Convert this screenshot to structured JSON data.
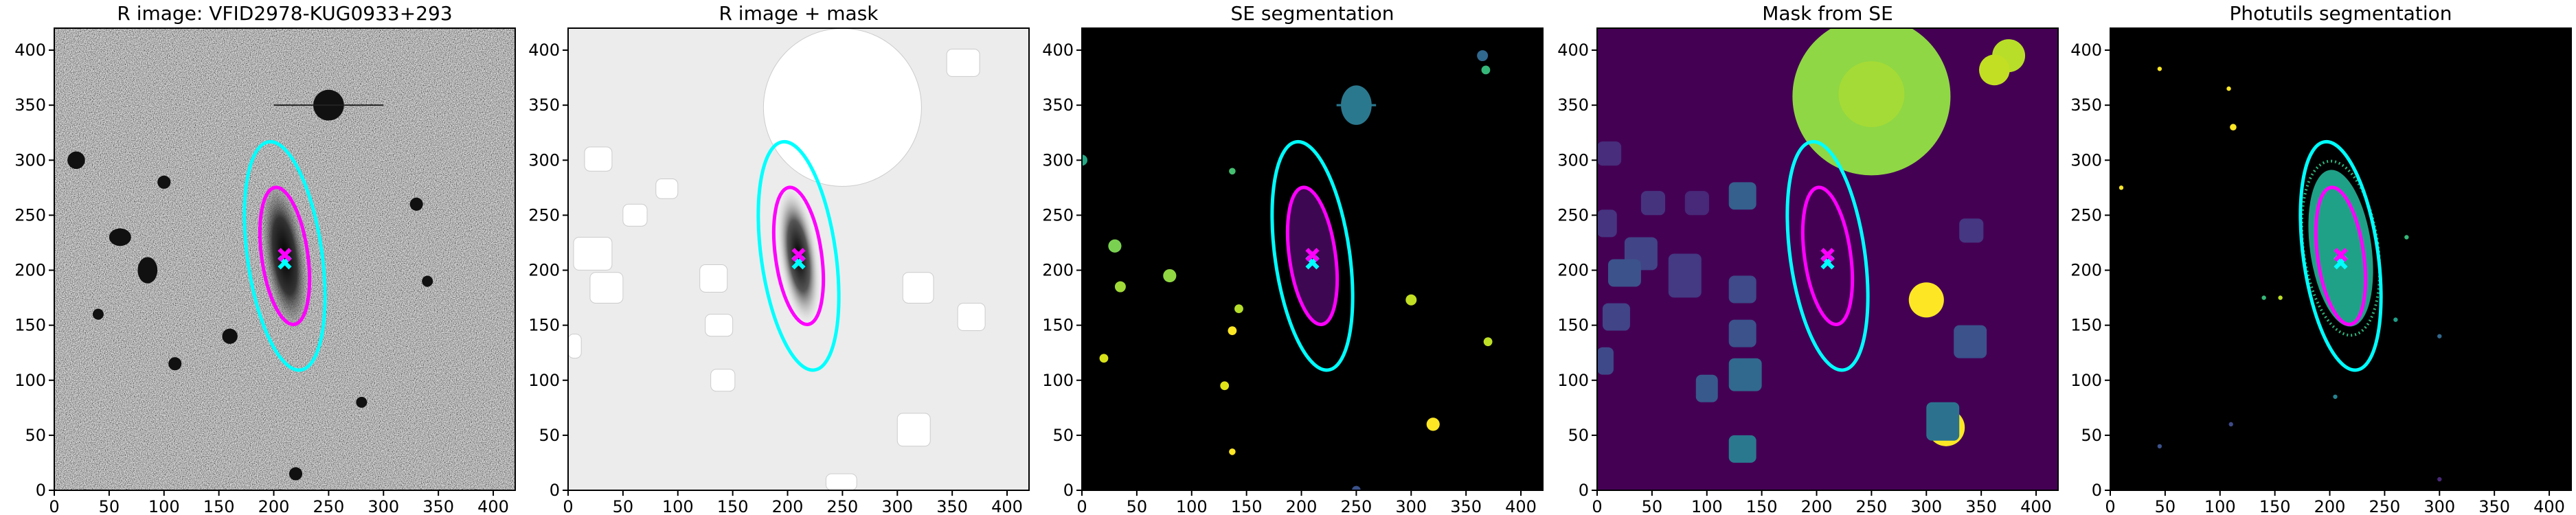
{
  "chart_data": [
    {
      "type": "image",
      "title": "R image: VFID2978-KUG0933+293",
      "xlim": [
        0,
        420
      ],
      "ylim": [
        0,
        420
      ],
      "xticks": [
        0,
        50,
        100,
        150,
        200,
        250,
        300,
        350,
        400
      ],
      "yticks": [
        0,
        50,
        100,
        150,
        200,
        250,
        300,
        350,
        400
      ]
    },
    {
      "type": "image",
      "title": "R image + mask",
      "xlim": [
        0,
        420
      ],
      "ylim": [
        0,
        420
      ],
      "xticks": [
        0,
        50,
        100,
        150,
        200,
        250,
        300,
        350,
        400
      ],
      "yticks": [
        0,
        50,
        100,
        150,
        200,
        250,
        300,
        350,
        400
      ]
    },
    {
      "type": "image",
      "title": "SE segmentation",
      "xlim": [
        0,
        420
      ],
      "ylim": [
        0,
        420
      ],
      "xticks": [
        0,
        50,
        100,
        150,
        200,
        250,
        300,
        350,
        400
      ],
      "yticks": [
        0,
        50,
        100,
        150,
        200,
        250,
        300,
        350,
        400
      ]
    },
    {
      "type": "image",
      "title": "Mask from SE",
      "xlim": [
        0,
        420
      ],
      "ylim": [
        0,
        420
      ],
      "xticks": [
        0,
        50,
        100,
        150,
        200,
        250,
        300,
        350,
        400
      ],
      "yticks": [
        0,
        50,
        100,
        150,
        200,
        250,
        300,
        350,
        400
      ]
    },
    {
      "type": "image",
      "title": "Photutils segmentation",
      "xlim": [
        0,
        420
      ],
      "ylim": [
        0,
        420
      ],
      "xticks": [
        0,
        50,
        100,
        150,
        200,
        250,
        300,
        350,
        400
      ],
      "yticks": [
        0,
        50,
        100,
        150,
        200,
        250,
        300,
        350,
        400
      ]
    }
  ]
}
